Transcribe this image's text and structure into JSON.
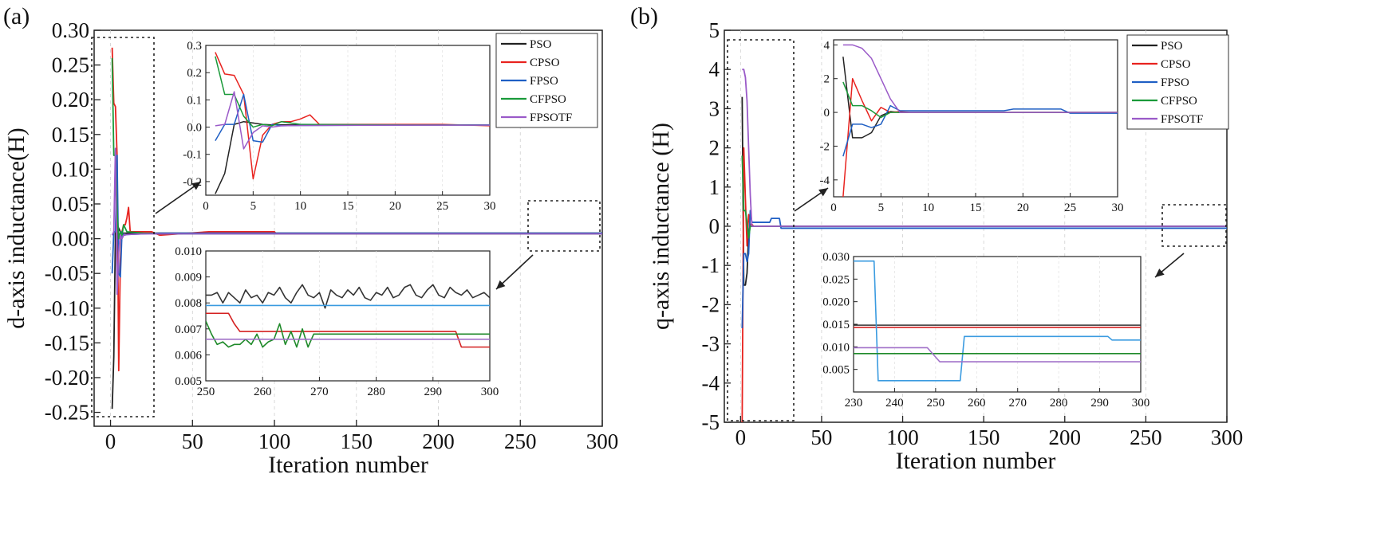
{
  "series_colors": {
    "PSO": "#222222",
    "CPSO": "#e8231f",
    "FPSO": "#1f5fc4",
    "CFPSO": "#1a9a3a",
    "FPSOTF": "#9a5ac8"
  },
  "detail_colors": {
    "PSO": "#333333",
    "CPSO": "#d42020",
    "FPSO": "#3a9be0",
    "CFPSO": "#1f8a2a",
    "FPSOTF": "#a070c8"
  },
  "chart_data": [
    {
      "id": "a",
      "panel_label": "(a)",
      "type": "line",
      "ylabel": "d-axis inductance(H)",
      "xlabel": "Iteration number",
      "xlim": [
        -10,
        300
      ],
      "ylim": [
        -0.27,
        0.3
      ],
      "xticks": [
        0,
        50,
        100,
        150,
        200,
        250,
        300
      ],
      "yticks": [
        -0.25,
        -0.2,
        -0.15,
        -0.1,
        -0.05,
        0.0,
        0.05,
        0.1,
        0.15,
        0.2,
        0.25,
        0.3
      ],
      "ytick_labels": [
        "-0.25",
        "-0.20",
        "-0.15",
        "-0.10",
        "-0.05",
        "0.00",
        "0.05",
        "0.10",
        "0.15",
        "0.20",
        "0.25",
        "0.30"
      ],
      "legend": [
        "PSO",
        "CPSO",
        "FPSO",
        "CFPSO",
        "FPSOTF"
      ],
      "series": [
        {
          "name": "PSO",
          "x": [
            1,
            2,
            3,
            4,
            5,
            6,
            7,
            8,
            10,
            15,
            20,
            30,
            300
          ],
          "y": [
            -0.245,
            -0.17,
            0.01,
            0.02,
            0.015,
            0.01,
            0.008,
            0.008,
            0.008,
            0.008,
            0.008,
            0.008,
            0.008
          ]
        },
        {
          "name": "CPSO",
          "x": [
            1,
            2,
            3,
            4,
            5,
            6,
            7,
            8,
            9,
            10,
            11,
            12,
            15,
            20,
            24,
            25,
            30,
            60,
            100,
            101,
            300
          ],
          "y": [
            0.275,
            0.195,
            0.19,
            0.12,
            -0.19,
            -0.03,
            0.01,
            0.02,
            0.02,
            0.03,
            0.045,
            0.01,
            0.01,
            0.01,
            0.01,
            0.01,
            0.005,
            0.01,
            0.01,
            0.007,
            0.007
          ]
        },
        {
          "name": "FPSO",
          "x": [
            1,
            2,
            3,
            4,
            5,
            6,
            7,
            8,
            10,
            20,
            30,
            300
          ],
          "y": [
            -0.05,
            0.01,
            0.01,
            0.12,
            -0.05,
            -0.055,
            0.01,
            0.005,
            0.006,
            0.007,
            0.008,
            0.008
          ]
        },
        {
          "name": "CFPSO",
          "x": [
            1,
            2,
            3,
            4,
            5,
            6,
            7,
            8,
            10,
            20,
            30,
            300
          ],
          "y": [
            0.26,
            0.12,
            0.12,
            0.04,
            0.0,
            0.01,
            0.005,
            0.02,
            0.01,
            0.008,
            0.007,
            0.007
          ]
        },
        {
          "name": "FPSOTF",
          "x": [
            1,
            2,
            3,
            4,
            5,
            6,
            7,
            8,
            10,
            20,
            30,
            300
          ],
          "y": [
            0.005,
            0.01,
            0.13,
            -0.08,
            -0.02,
            0.005,
            0.0,
            0.005,
            0.006,
            0.007,
            0.007,
            0.007
          ]
        }
      ],
      "inset_top": {
        "xlim": [
          0,
          30
        ],
        "ylim": [
          -0.25,
          0.3
        ],
        "xticks": [
          0,
          5,
          10,
          15,
          20,
          25,
          30
        ],
        "yticks": [
          -0.2,
          -0.1,
          0.0,
          0.1,
          0.2,
          0.3
        ],
        "ytick_labels": [
          "-0.2",
          "-0.1",
          "0.0",
          "0.1",
          "0.2",
          "0.3"
        ]
      },
      "inset_bottom": {
        "xlim": [
          250,
          300
        ],
        "ylim": [
          0.005,
          0.01
        ],
        "xticks": [
          250,
          260,
          270,
          280,
          290,
          300
        ],
        "yticks": [
          0.005,
          0.006,
          0.007,
          0.008,
          0.009,
          0.01
        ],
        "ytick_labels": [
          "0.005",
          "0.006",
          "0.007",
          "0.008",
          "0.009",
          "0.010"
        ],
        "series": [
          {
            "name": "PSO",
            "x": [
              250,
              251,
              252,
              253,
              254,
              255,
              256,
              257,
              258,
              259,
              260,
              261,
              262,
              263,
              264,
              265,
              266,
              267,
              268,
              269,
              270,
              271,
              272,
              273,
              274,
              275,
              276,
              277,
              278,
              279,
              280,
              281,
              282,
              283,
              284,
              285,
              286,
              287,
              288,
              289,
              290,
              291,
              292,
              293,
              294,
              295,
              296,
              297,
              298,
              299,
              300
            ],
            "y": [
              0.0083,
              0.0083,
              0.0084,
              0.008,
              0.0084,
              0.0082,
              0.008,
              0.0085,
              0.0082,
              0.0083,
              0.008,
              0.0084,
              0.0083,
              0.0086,
              0.0082,
              0.008,
              0.0084,
              0.0087,
              0.0083,
              0.0082,
              0.0084,
              0.0078,
              0.0085,
              0.0083,
              0.0082,
              0.0085,
              0.0083,
              0.0086,
              0.0082,
              0.0081,
              0.0084,
              0.0083,
              0.0086,
              0.0082,
              0.0083,
              0.0086,
              0.0087,
              0.0083,
              0.0082,
              0.0085,
              0.0087,
              0.0083,
              0.0082,
              0.0086,
              0.0084,
              0.0083,
              0.0085,
              0.0082,
              0.0083,
              0.0084,
              0.0082
            ]
          },
          {
            "name": "CPSO",
            "x": [
              250,
              254,
              255,
              256,
              294,
              295,
              300
            ],
            "y": [
              0.0076,
              0.0076,
              0.0072,
              0.0069,
              0.0069,
              0.0063,
              0.0063
            ]
          },
          {
            "name": "FPSO",
            "x": [
              250,
              300
            ],
            "y": [
              0.0079,
              0.0079
            ]
          },
          {
            "name": "CFPSO",
            "x": [
              250,
              251,
              252,
              253,
              254,
              255,
              256,
              257,
              258,
              259,
              260,
              261,
              262,
              263,
              264,
              265,
              266,
              267,
              268,
              269,
              270,
              300
            ],
            "y": [
              0.0073,
              0.0068,
              0.0064,
              0.0065,
              0.0063,
              0.0064,
              0.0064,
              0.0066,
              0.0064,
              0.0068,
              0.0063,
              0.0065,
              0.0066,
              0.0072,
              0.0064,
              0.0069,
              0.0063,
              0.007,
              0.0063,
              0.0068,
              0.0068,
              0.0068
            ]
          },
          {
            "name": "FPSOTF",
            "x": [
              250,
              300
            ],
            "y": [
              0.0066,
              0.0066
            ]
          }
        ]
      }
    },
    {
      "id": "b",
      "panel_label": "(b)",
      "type": "line",
      "ylabel": "q-axis inductance (H)",
      "xlabel": "Iteration number",
      "xlim": [
        -10,
        300
      ],
      "ylim": [
        -5,
        5
      ],
      "xticks": [
        0,
        50,
        100,
        150,
        200,
        250,
        300
      ],
      "yticks": [
        -5,
        -4,
        -3,
        -2,
        -1,
        0,
        1,
        2,
        3,
        4,
        5
      ],
      "ytick_labels": [
        "-5",
        "-4",
        "-3",
        "-2",
        "-1",
        "0",
        "1",
        "2",
        "3",
        "4",
        "5"
      ],
      "legend": [
        "PSO",
        "CPSO",
        "FPSO",
        "CFPSO",
        "FPSOTF"
      ],
      "series": [
        {
          "name": "PSO",
          "x": [
            1,
            2,
            3,
            4,
            5,
            6,
            7,
            8,
            10,
            20,
            30,
            300
          ],
          "y": [
            3.3,
            -1.5,
            -1.5,
            -1.2,
            -0.2,
            0.05,
            0.0,
            0.0,
            0.0,
            0.0,
            0.0,
            0.0
          ]
        },
        {
          "name": "CPSO",
          "x": [
            1,
            2,
            3,
            4,
            5,
            6,
            7,
            8,
            10,
            20,
            30,
            300
          ],
          "y": [
            -5.0,
            2.0,
            0.7,
            -0.5,
            0.3,
            0.0,
            0.05,
            0.0,
            0.0,
            0.0,
            0.0,
            0.0
          ]
        },
        {
          "name": "FPSO",
          "x": [
            1,
            2,
            3,
            4,
            5,
            6,
            7,
            8,
            10,
            18,
            19,
            24,
            25,
            30,
            300
          ],
          "y": [
            -2.6,
            -0.7,
            -0.7,
            -0.9,
            -0.7,
            0.4,
            0.1,
            0.1,
            0.1,
            0.1,
            0.2,
            0.2,
            -0.05,
            -0.05,
            -0.05
          ]
        },
        {
          "name": "CFPSO",
          "x": [
            1,
            2,
            3,
            4,
            5,
            6,
            7,
            8,
            10,
            20,
            30,
            300
          ],
          "y": [
            1.8,
            0.4,
            0.4,
            0.1,
            -0.3,
            0.0,
            0.0,
            0.0,
            0.0,
            0.0,
            0.0,
            0.0
          ]
        },
        {
          "name": "FPSOTF",
          "x": [
            1,
            2,
            3,
            4,
            5,
            6,
            7,
            8,
            10,
            20,
            30,
            300
          ],
          "y": [
            4.0,
            4.0,
            3.8,
            3.2,
            2.0,
            0.8,
            0.0,
            0.0,
            0.0,
            0.0,
            0.0,
            0.0
          ]
        }
      ],
      "inset_top": {
        "xlim": [
          0,
          30
        ],
        "ylim": [
          -5,
          4.3
        ],
        "xticks": [
          0,
          5,
          10,
          15,
          20,
          25,
          30
        ],
        "yticks": [
          -4,
          -2,
          0,
          2,
          4
        ],
        "ytick_labels": [
          "-4",
          "-2",
          "0",
          "2",
          "4"
        ]
      },
      "inset_bottom": {
        "xlim": [
          230,
          300
        ],
        "ylim": [
          0.0,
          0.03
        ],
        "xticks": [
          230,
          240,
          250,
          260,
          270,
          280,
          290,
          300
        ],
        "yticks": [
          0.005,
          0.01,
          0.015,
          0.02,
          0.025,
          0.03
        ],
        "ytick_labels": [
          "0.005",
          "0.010",
          "0.015",
          "0.020",
          "0.025",
          "0.030"
        ],
        "series": [
          {
            "name": "PSO",
            "x": [
              230,
              300
            ],
            "y": [
              0.0148,
              0.0148
            ]
          },
          {
            "name": "CPSO",
            "x": [
              230,
              300
            ],
            "y": [
              0.0143,
              0.0143
            ]
          },
          {
            "name": "FPSO",
            "x": [
              230,
              235,
              236,
              256,
              257,
              292,
              293,
              300
            ],
            "y": [
              0.029,
              0.029,
              0.0025,
              0.0025,
              0.0123,
              0.0123,
              0.0115,
              0.0115
            ]
          },
          {
            "name": "CFPSO",
            "x": [
              230,
              300
            ],
            "y": [
              0.0085,
              0.0085
            ]
          },
          {
            "name": "FPSOTF",
            "x": [
              230,
              248,
              251,
              300
            ],
            "y": [
              0.0098,
              0.0098,
              0.0067,
              0.0067
            ]
          }
        ]
      }
    }
  ]
}
